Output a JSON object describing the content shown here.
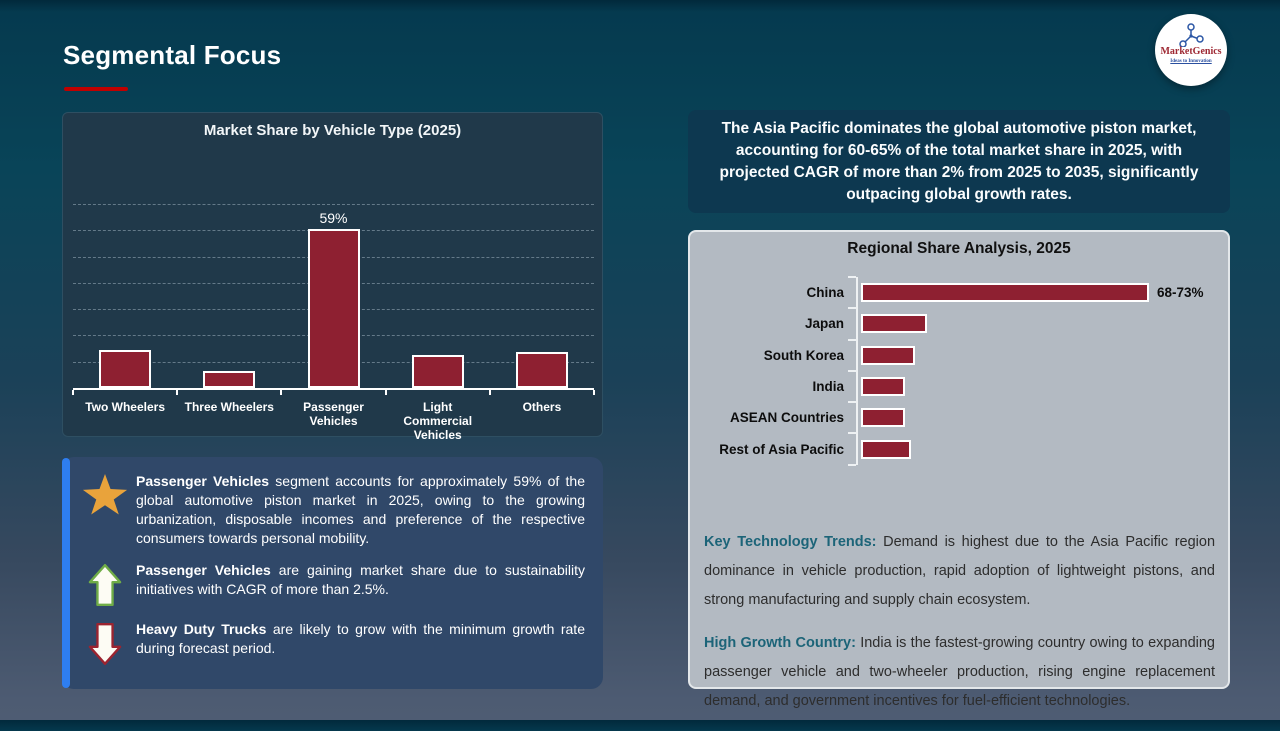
{
  "slide": {
    "title": "Segmental Focus"
  },
  "logo": {
    "name": "MarketGenics",
    "tagline": "Ideas to Innovation"
  },
  "chart_data": [
    {
      "type": "bar",
      "orientation": "vertical",
      "title": "Market Share by Vehicle Type (2025)",
      "categories": [
        "Two Wheelers",
        "Three Wheelers",
        "Passenger Vehicles",
        "Light Commercial Vehicles",
        "Others"
      ],
      "values": [
        13,
        5,
        59,
        11,
        12
      ],
      "unit": "%",
      "data_labels": [
        "",
        "",
        "59%",
        "",
        ""
      ],
      "ylim": [
        0,
        70
      ],
      "gridlines": "dashed horizontal every 10%",
      "bar_color": "#8e2031"
    },
    {
      "type": "bar",
      "orientation": "horizontal",
      "title": "Regional Share Analysis, 2025",
      "categories": [
        "China",
        "Japan",
        "South Korea",
        "India",
        "ASEAN Countries",
        "Rest of Asia Pacific"
      ],
      "values": [
        70.5,
        15.5,
        12.5,
        10,
        10,
        11.5
      ],
      "unit": "%",
      "data_labels": [
        "68-73%",
        "",
        "",
        "",
        "",
        ""
      ],
      "bar_color": "#8e2031"
    }
  ],
  "insight_box": {
    "items": [
      {
        "icon": "star-icon",
        "bold": "Passenger Vehicles",
        "text": " segment accounts for approximately 59% of the global automotive piston market in 2025, owing to the growing urbanization, disposable incomes and preference of the respective consumers towards personal mobility."
      },
      {
        "icon": "up-arrow-icon",
        "bold": "Passenger Vehicles",
        "text": " are gaining market share due to sustainability initiatives with CAGR of more than 2.5%."
      },
      {
        "icon": "down-arrow-icon",
        "bold": "Heavy Duty Trucks",
        "text": " are likely to grow with the minimum growth rate during forecast period."
      }
    ]
  },
  "highlight_box": {
    "text": "The Asia Pacific dominates the global automotive piston market, accounting for 60-65% of the total market share in 2025, with projected CAGR of more than 2% from 2025 to 2035, significantly outpacing global growth rates."
  },
  "regional_notes": [
    {
      "label": "Key Technology Trends:",
      "text": " Demand is highest due to the Asia Pacific region dominance in vehicle production, rapid adoption of lightweight pistons, and strong manufacturing and supply chain ecosystem."
    },
    {
      "label": "High Growth Country:",
      "text": " India is the fastest-growing country owing to expanding passenger vehicle and two-wheeler production, rising engine replacement demand, and government incentives for fuel-efficient technologies."
    }
  ],
  "colors": {
    "bar": "#8e2031",
    "accent_stripe": "#2e7ef0",
    "title_underline": "#c00000",
    "star": "#e9a33b",
    "up_arrow_border": "#70ad47",
    "down_arrow_border": "#9c2430",
    "note_label": "#1c6478",
    "panel_dark": "#20394a",
    "panel_gray": "#b3bac2",
    "insight_bg": "#304869",
    "apac_bg": "#0d3850"
  }
}
